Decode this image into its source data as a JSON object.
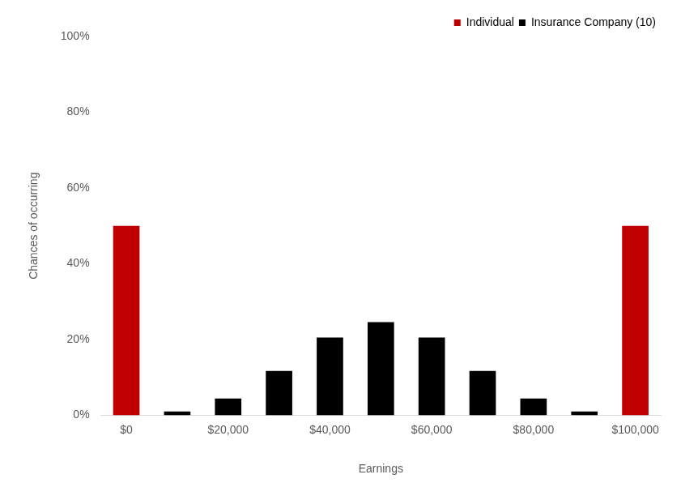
{
  "chart_data": {
    "type": "bar",
    "x_label": "Earnings",
    "y_label": "Chances of occurring",
    "categories": [
      "$0",
      null,
      "$20,000",
      null,
      "$40,000",
      null,
      "$60,000",
      null,
      "$80,000",
      null,
      "$100,000"
    ],
    "series": [
      {
        "name": "Insurance Company (10)",
        "color": "#000000",
        "values": [
          null,
          1.0,
          4.4,
          11.7,
          20.5,
          24.6,
          20.5,
          11.7,
          4.4,
          1.0,
          null
        ]
      },
      {
        "name": "Individual",
        "color": "#c00000",
        "values": [
          50,
          null,
          null,
          null,
          null,
          null,
          null,
          null,
          null,
          null,
          50
        ]
      }
    ],
    "ylim": [
      0,
      100
    ],
    "yticks": [
      {
        "value": 0,
        "label": "0%"
      },
      {
        "value": 20,
        "label": "20%"
      },
      {
        "value": 40,
        "label": "40%"
      },
      {
        "value": 60,
        "label": "60%"
      },
      {
        "value": 80,
        "label": "80%"
      },
      {
        "value": 100,
        "label": "100%"
      }
    ],
    "grid": false,
    "legend": "top-right"
  }
}
